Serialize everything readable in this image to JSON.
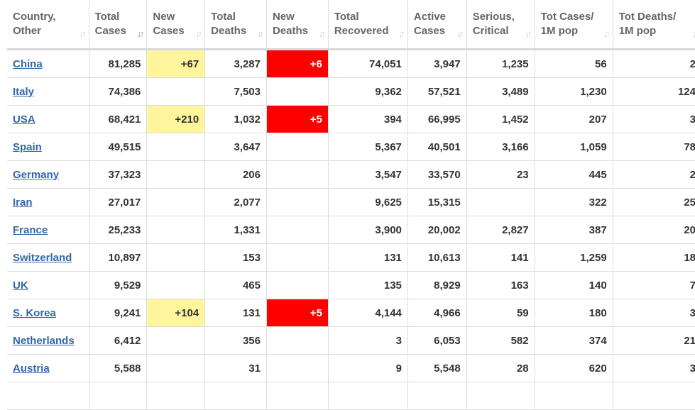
{
  "headers": [
    {
      "line1": "Country,",
      "line2": "Other"
    },
    {
      "line1": "Total",
      "line2": "Cases",
      "sorted": true
    },
    {
      "line1": "New",
      "line2": "Cases"
    },
    {
      "line1": "Total",
      "line2": "Deaths"
    },
    {
      "line1": "New",
      "line2": "Deaths"
    },
    {
      "line1": "Total",
      "line2": "Recovered"
    },
    {
      "line1": "Active",
      "line2": "Cases"
    },
    {
      "line1": "Serious,",
      "line2": "Critical"
    },
    {
      "line1": "Tot Cases/",
      "line2": "1M pop"
    },
    {
      "line1": "Tot Deaths/",
      "line2": "1M pop"
    }
  ],
  "rows": [
    {
      "country": "China",
      "total_cases": "81,285",
      "new_cases": "+67",
      "total_deaths": "3,287",
      "new_deaths": "+6",
      "total_recovered": "74,051",
      "active_cases": "3,947",
      "serious_critical": "1,235",
      "cases_per_1m": "56",
      "deaths_per_1m": "2"
    },
    {
      "country": "Italy",
      "total_cases": "74,386",
      "new_cases": "",
      "total_deaths": "7,503",
      "new_deaths": "",
      "total_recovered": "9,362",
      "active_cases": "57,521",
      "serious_critical": "3,489",
      "cases_per_1m": "1,230",
      "deaths_per_1m": "124"
    },
    {
      "country": "USA",
      "total_cases": "68,421",
      "new_cases": "+210",
      "total_deaths": "1,032",
      "new_deaths": "+5",
      "total_recovered": "394",
      "active_cases": "66,995",
      "serious_critical": "1,452",
      "cases_per_1m": "207",
      "deaths_per_1m": "3"
    },
    {
      "country": "Spain",
      "total_cases": "49,515",
      "new_cases": "",
      "total_deaths": "3,647",
      "new_deaths": "",
      "total_recovered": "5,367",
      "active_cases": "40,501",
      "serious_critical": "3,166",
      "cases_per_1m": "1,059",
      "deaths_per_1m": "78"
    },
    {
      "country": "Germany",
      "total_cases": "37,323",
      "new_cases": "",
      "total_deaths": "206",
      "new_deaths": "",
      "total_recovered": "3,547",
      "active_cases": "33,570",
      "serious_critical": "23",
      "cases_per_1m": "445",
      "deaths_per_1m": "2"
    },
    {
      "country": "Iran",
      "total_cases": "27,017",
      "new_cases": "",
      "total_deaths": "2,077",
      "new_deaths": "",
      "total_recovered": "9,625",
      "active_cases": "15,315",
      "serious_critical": "",
      "cases_per_1m": "322",
      "deaths_per_1m": "25"
    },
    {
      "country": "France",
      "total_cases": "25,233",
      "new_cases": "",
      "total_deaths": "1,331",
      "new_deaths": "",
      "total_recovered": "3,900",
      "active_cases": "20,002",
      "serious_critical": "2,827",
      "cases_per_1m": "387",
      "deaths_per_1m": "20"
    },
    {
      "country": "Switzerland",
      "total_cases": "10,897",
      "new_cases": "",
      "total_deaths": "153",
      "new_deaths": "",
      "total_recovered": "131",
      "active_cases": "10,613",
      "serious_critical": "141",
      "cases_per_1m": "1,259",
      "deaths_per_1m": "18"
    },
    {
      "country": "UK",
      "total_cases": "9,529",
      "new_cases": "",
      "total_deaths": "465",
      "new_deaths": "",
      "total_recovered": "135",
      "active_cases": "8,929",
      "serious_critical": "163",
      "cases_per_1m": "140",
      "deaths_per_1m": "7"
    },
    {
      "country": "S. Korea",
      "total_cases": "9,241",
      "new_cases": "+104",
      "total_deaths": "131",
      "new_deaths": "+5",
      "total_recovered": "4,144",
      "active_cases": "4,966",
      "serious_critical": "59",
      "cases_per_1m": "180",
      "deaths_per_1m": "3"
    },
    {
      "country": "Netherlands",
      "total_cases": "6,412",
      "new_cases": "",
      "total_deaths": "356",
      "new_deaths": "",
      "total_recovered": "3",
      "active_cases": "6,053",
      "serious_critical": "582",
      "cases_per_1m": "374",
      "deaths_per_1m": "21"
    },
    {
      "country": "Austria",
      "total_cases": "5,588",
      "new_cases": "",
      "total_deaths": "31",
      "new_deaths": "",
      "total_recovered": "9",
      "active_cases": "5,548",
      "serious_critical": "28",
      "cases_per_1m": "620",
      "deaths_per_1m": "3"
    },
    {
      "country": "",
      "total_cases": "",
      "new_cases": "",
      "total_deaths": "",
      "new_deaths": "",
      "total_recovered": "",
      "active_cases": "",
      "serious_critical": "",
      "cases_per_1m": "",
      "deaths_per_1m": ""
    }
  ],
  "colors": {
    "new_cases_highlight": "#fff59d",
    "new_deaths_highlight": "#ff0000",
    "link": "#3366aa"
  },
  "icons": {
    "sort": "sort-arrows-icon"
  }
}
